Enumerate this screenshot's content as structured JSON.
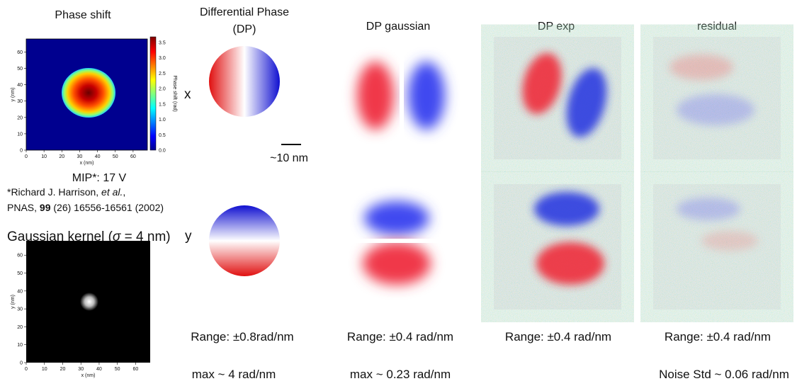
{
  "phase_shift": {
    "title": "Phase shift",
    "x_label": "x (nm)",
    "y_label": "y (nm)",
    "x_ticks": [
      0,
      10,
      20,
      30,
      40,
      50,
      60
    ],
    "y_ticks": [
      0,
      10,
      20,
      30,
      40,
      50,
      60
    ],
    "colorbar_label": "Phase shift (rad)",
    "colorbar_ticks": [
      "0.0",
      "0.5",
      "1.0",
      "1.5",
      "2.0",
      "2.5",
      "3.0",
      "3.5"
    ]
  },
  "mip": "MIP*: 17 V",
  "reference": {
    "line1": [
      "*Richard J. Harrison, ",
      "et al.",
      ","
    ],
    "line2": [
      "PNAS, ",
      "99",
      " (26) 16556-16561 (2002)"
    ]
  },
  "kernel": {
    "title": [
      "Gaussian kernel (",
      "σ",
      " = 4 nm)"
    ],
    "x_label": "x (nm)",
    "y_label": "y (nm)",
    "x_ticks": [
      0,
      10,
      20,
      30,
      40,
      50,
      60
    ],
    "y_ticks": [
      0,
      10,
      20,
      30,
      40,
      50,
      60
    ]
  },
  "row_labels": [
    "x",
    "y"
  ],
  "scale_bar": "~10 nm",
  "columns": [
    {
      "title": [
        "Differential Phase",
        "(DP)"
      ],
      "range": "Range: ±0.8rad/nm",
      "max": "max ~ 4 rad/nm"
    },
    {
      "title": [
        "DP gaussian"
      ],
      "range": "Range: ±0.4 rad/nm",
      "max": "max ~ 0.23 rad/nm"
    },
    {
      "title": [
        "DP exp"
      ],
      "range": "Range: ±0.4 rad/nm"
    },
    {
      "title": [
        "residual"
      ],
      "range": "Range: ±0.4 rad/nm",
      "noise": "Noise Std ~ 0.06 rad/nm"
    }
  ]
}
